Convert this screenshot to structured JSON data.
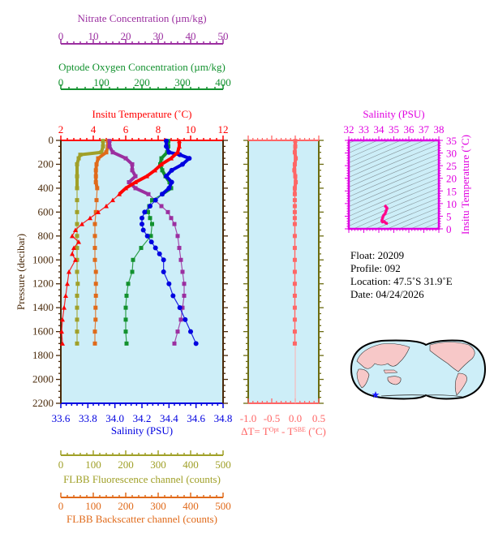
{
  "chart_data": [
    {
      "type": "line",
      "title": "Float profile",
      "ylabel": "Pressure (decibar)",
      "ylim": [
        0,
        2200
      ],
      "y_inverted": true,
      "yticks": [
        0,
        200,
        400,
        600,
        800,
        1000,
        1200,
        1400,
        1600,
        1800,
        2000,
        2200
      ],
      "axes": {
        "nitrate": {
          "label": "Nitrate Concentration (µm/kg)",
          "range": [
            0,
            50
          ],
          "ticks": [
            "0",
            "10",
            "20",
            "30",
            "40",
            "50"
          ],
          "color": "#9b2fa0"
        },
        "oxygen": {
          "label": "Optode Oxygen Concentration (µm/kg)",
          "range": [
            0,
            400
          ],
          "ticks": [
            "0",
            "100",
            "200",
            "300",
            "400"
          ],
          "color": "#12912e"
        },
        "temperature": {
          "label": "Insitu Temperature (˚C)",
          "range": [
            2,
            12
          ],
          "ticks": [
            "2",
            "4",
            "6",
            "8",
            "10",
            "12"
          ],
          "color": "#ff0000"
        },
        "salinity": {
          "label": "Salinity (PSU)",
          "range": [
            33.6,
            34.8
          ],
          "ticks": [
            "33.6",
            "33.8",
            "34.0",
            "34.2",
            "34.4",
            "34.6",
            "34.8"
          ],
          "color": "#0000e0"
        },
        "fluorescence": {
          "label": "FLBB Fluorescence channel (counts)",
          "range": [
            0,
            500
          ],
          "ticks": [
            "0",
            "100",
            "200",
            "300",
            "400",
            "500"
          ],
          "color": "#a0a028"
        },
        "backscatter": {
          "label": "FLBB Backscatter channel (counts)",
          "range": [
            0,
            500
          ],
          "ticks": [
            "0",
            "100",
            "200",
            "300",
            "400",
            "500"
          ],
          "color": "#e06a1a"
        }
      },
      "series": [
        {
          "name": "Temperature",
          "axis": "temperature",
          "marker": "triangle",
          "pressure": [
            5,
            50,
            100,
            150,
            200,
            250,
            300,
            350,
            400,
            450,
            500,
            550,
            600,
            650,
            700,
            750,
            800,
            850,
            900,
            950,
            1000,
            1100,
            1200,
            1300,
            1400,
            1500,
            1600,
            1700
          ],
          "values": [
            9.3,
            9.3,
            9.2,
            8.8,
            8.2,
            7.8,
            7.3,
            6.6,
            6.0,
            5.6,
            5.2,
            4.8,
            4.3,
            3.8,
            3.3,
            2.9,
            2.7,
            3.1,
            2.8,
            2.7,
            2.9,
            2.5,
            2.4,
            2.3,
            2.2,
            2.1,
            2.05,
            2.1
          ]
        },
        {
          "name": "Salinity",
          "axis": "salinity",
          "marker": "circle",
          "pressure": [
            5,
            50,
            100,
            120,
            150,
            200,
            250,
            300,
            350,
            400,
            450,
            500,
            550,
            600,
            650,
            700,
            750,
            800,
            850,
            900,
            950,
            1000,
            1100,
            1200,
            1300,
            1400,
            1500,
            1600,
            1700
          ],
          "values": [
            34.38,
            34.38,
            34.4,
            34.48,
            34.55,
            34.5,
            34.42,
            34.38,
            34.42,
            34.4,
            34.35,
            34.3,
            34.26,
            34.22,
            34.2,
            34.2,
            34.21,
            34.24,
            34.27,
            34.3,
            34.33,
            34.36,
            34.36,
            34.4,
            34.43,
            34.48,
            34.52,
            34.56,
            34.6
          ]
        },
        {
          "name": "Oxygen",
          "axis": "oxygen",
          "marker": "square",
          "pressure": [
            5,
            50,
            100,
            150,
            200,
            250,
            300,
            350,
            400,
            450,
            500,
            550,
            600,
            650,
            700,
            800,
            900,
            1000,
            1100,
            1200,
            1300,
            1400,
            1500,
            1600,
            1700
          ],
          "values": [
            265,
            265,
            262,
            248,
            245,
            250,
            258,
            268,
            272,
            250,
            225,
            218,
            215,
            220,
            225,
            222,
            198,
            178,
            176,
            166,
            162,
            160,
            160,
            160,
            162
          ]
        },
        {
          "name": "Nitrate",
          "axis": "nitrate",
          "marker": "square",
          "pressure": [
            5,
            50,
            100,
            150,
            200,
            250,
            300,
            350,
            400,
            450,
            500,
            550,
            600,
            650,
            700,
            800,
            900,
            1000,
            1100,
            1200,
            1300,
            1400,
            1500,
            1600,
            1700
          ],
          "values": [
            15,
            15,
            16,
            20,
            22,
            22,
            23,
            21,
            23,
            27,
            29,
            31,
            33,
            34,
            35,
            36,
            36.5,
            37,
            37.5,
            38,
            38,
            37.5,
            37,
            36,
            35
          ]
        },
        {
          "name": "Fluorescence",
          "axis": "fluorescence",
          "marker": "square",
          "pressure": [
            5,
            50,
            100,
            120,
            150,
            200,
            300,
            400,
            500,
            600,
            700,
            800,
            900,
            1000,
            1100,
            1200,
            1300,
            1400,
            1500,
            1600,
            1700
          ],
          "values": [
            130,
            130,
            125,
            60,
            55,
            50,
            50,
            50,
            50,
            50,
            50,
            50,
            50,
            50,
            50,
            52,
            50,
            50,
            50,
            50,
            50
          ]
        },
        {
          "name": "Backscatter",
          "axis": "backscatter",
          "marker": "square",
          "pressure": [
            5,
            50,
            100,
            150,
            200,
            250,
            300,
            350,
            400,
            500,
            600,
            700,
            800,
            900,
            1000,
            1100,
            1200,
            1300,
            1400,
            1500,
            1600,
            1700
          ],
          "values": [
            145,
            145,
            140,
            115,
            110,
            108,
            108,
            108,
            112,
            110,
            108,
            105,
            105,
            105,
            105,
            108,
            108,
            108,
            107,
            107,
            105,
            105
          ]
        }
      ]
    },
    {
      "type": "line",
      "title": "Temperature difference",
      "xlabel": "ΔT= T^Opt - T^SBE (˚C)",
      "xlim": [
        -1.0,
        0.5
      ],
      "xticks": [
        "-1.0",
        "-0.5",
        "0.0",
        "0.5"
      ],
      "ylim": [
        0,
        2200
      ],
      "series": [
        {
          "name": "dT",
          "color": "#ff6666",
          "pressure": [
            5,
            50,
            100,
            150,
            200,
            250,
            300,
            350,
            400,
            450,
            500,
            550,
            600,
            650,
            700,
            800,
            900,
            1000,
            1100,
            1200,
            1300,
            1400,
            1500,
            1600,
            1700
          ],
          "values": [
            0.0,
            0.0,
            -0.01,
            0.01,
            -0.01,
            -0.02,
            0.0,
            0.01,
            -0.01,
            -0.01,
            -0.01,
            -0.01,
            -0.01,
            -0.01,
            -0.01,
            -0.01,
            -0.01,
            -0.01,
            -0.01,
            -0.01,
            -0.01,
            -0.01,
            -0.01,
            -0.01,
            -0.01
          ]
        }
      ]
    },
    {
      "type": "scatter",
      "title": "T-S diagram",
      "xlabel": "Salinity (PSU)",
      "ylabel": "Insitu Temperature (˚C)",
      "xlim": [
        32,
        38
      ],
      "ylim": [
        0,
        35
      ],
      "xticks": [
        "32",
        "33",
        "34",
        "35",
        "36",
        "37",
        "38"
      ],
      "yticks": [
        "0",
        "5",
        "10",
        "15",
        "20",
        "25",
        "30",
        "35"
      ],
      "series": [
        {
          "name": "Profile",
          "color": "#ff00aa",
          "x": [
            34.38,
            34.4,
            34.55,
            34.42,
            34.3,
            34.2,
            34.24,
            34.36,
            34.48,
            34.6
          ],
          "y": [
            9.3,
            9.2,
            8.2,
            6.0,
            5.2,
            3.3,
            2.7,
            2.9,
            2.2,
            2.1
          ]
        }
      ]
    }
  ],
  "info": {
    "float": "Float:  20209",
    "profile": "Profile:  092",
    "location": "Location:  47.5˚S  31.9˚E",
    "date": "Date:  04/24/2026"
  },
  "colors": {
    "plot_bg": "#cdeef8",
    "pressure_axis": "#4a2a0a",
    "dt_axis": "#6b6b10",
    "dt_color": "#ff6666",
    "ts_color": "#e000e0",
    "land": "#f7c8c8",
    "star": "#1a1aff"
  }
}
